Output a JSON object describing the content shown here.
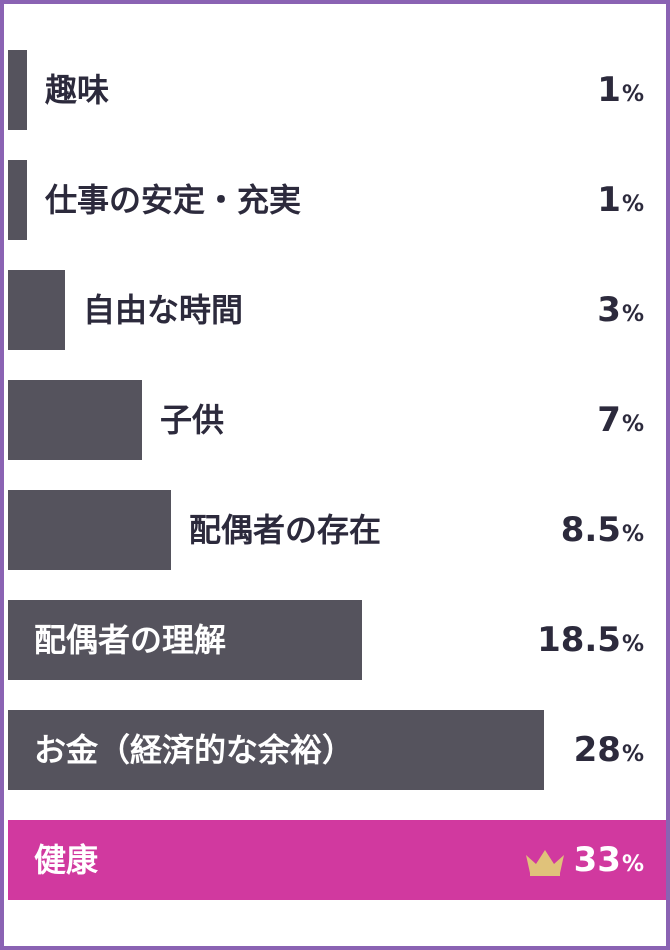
{
  "colors": {
    "frame": "#8a63b3",
    "bar": "#55535d",
    "highlight": "#d1399f",
    "crown": "#e0c27a",
    "text_dark": "#2c2a3c",
    "text_light": "#ffffff"
  },
  "chart_data": {
    "type": "bar",
    "orientation": "horizontal",
    "unit": "%",
    "categories": [
      "趣味",
      "仕事の安定・充実",
      "自由な時間",
      "子供",
      "配偶者の存在",
      "配偶者の理解",
      "お金（経済的な余裕）",
      "健康"
    ],
    "values": [
      1,
      1,
      3,
      7,
      8.5,
      18.5,
      28,
      33
    ],
    "value_labels": [
      "1",
      "1",
      "3",
      "7",
      "8.5",
      "18.5",
      "28",
      "33"
    ],
    "highlight_index": 7,
    "highlight_icon": "crown-icon"
  }
}
